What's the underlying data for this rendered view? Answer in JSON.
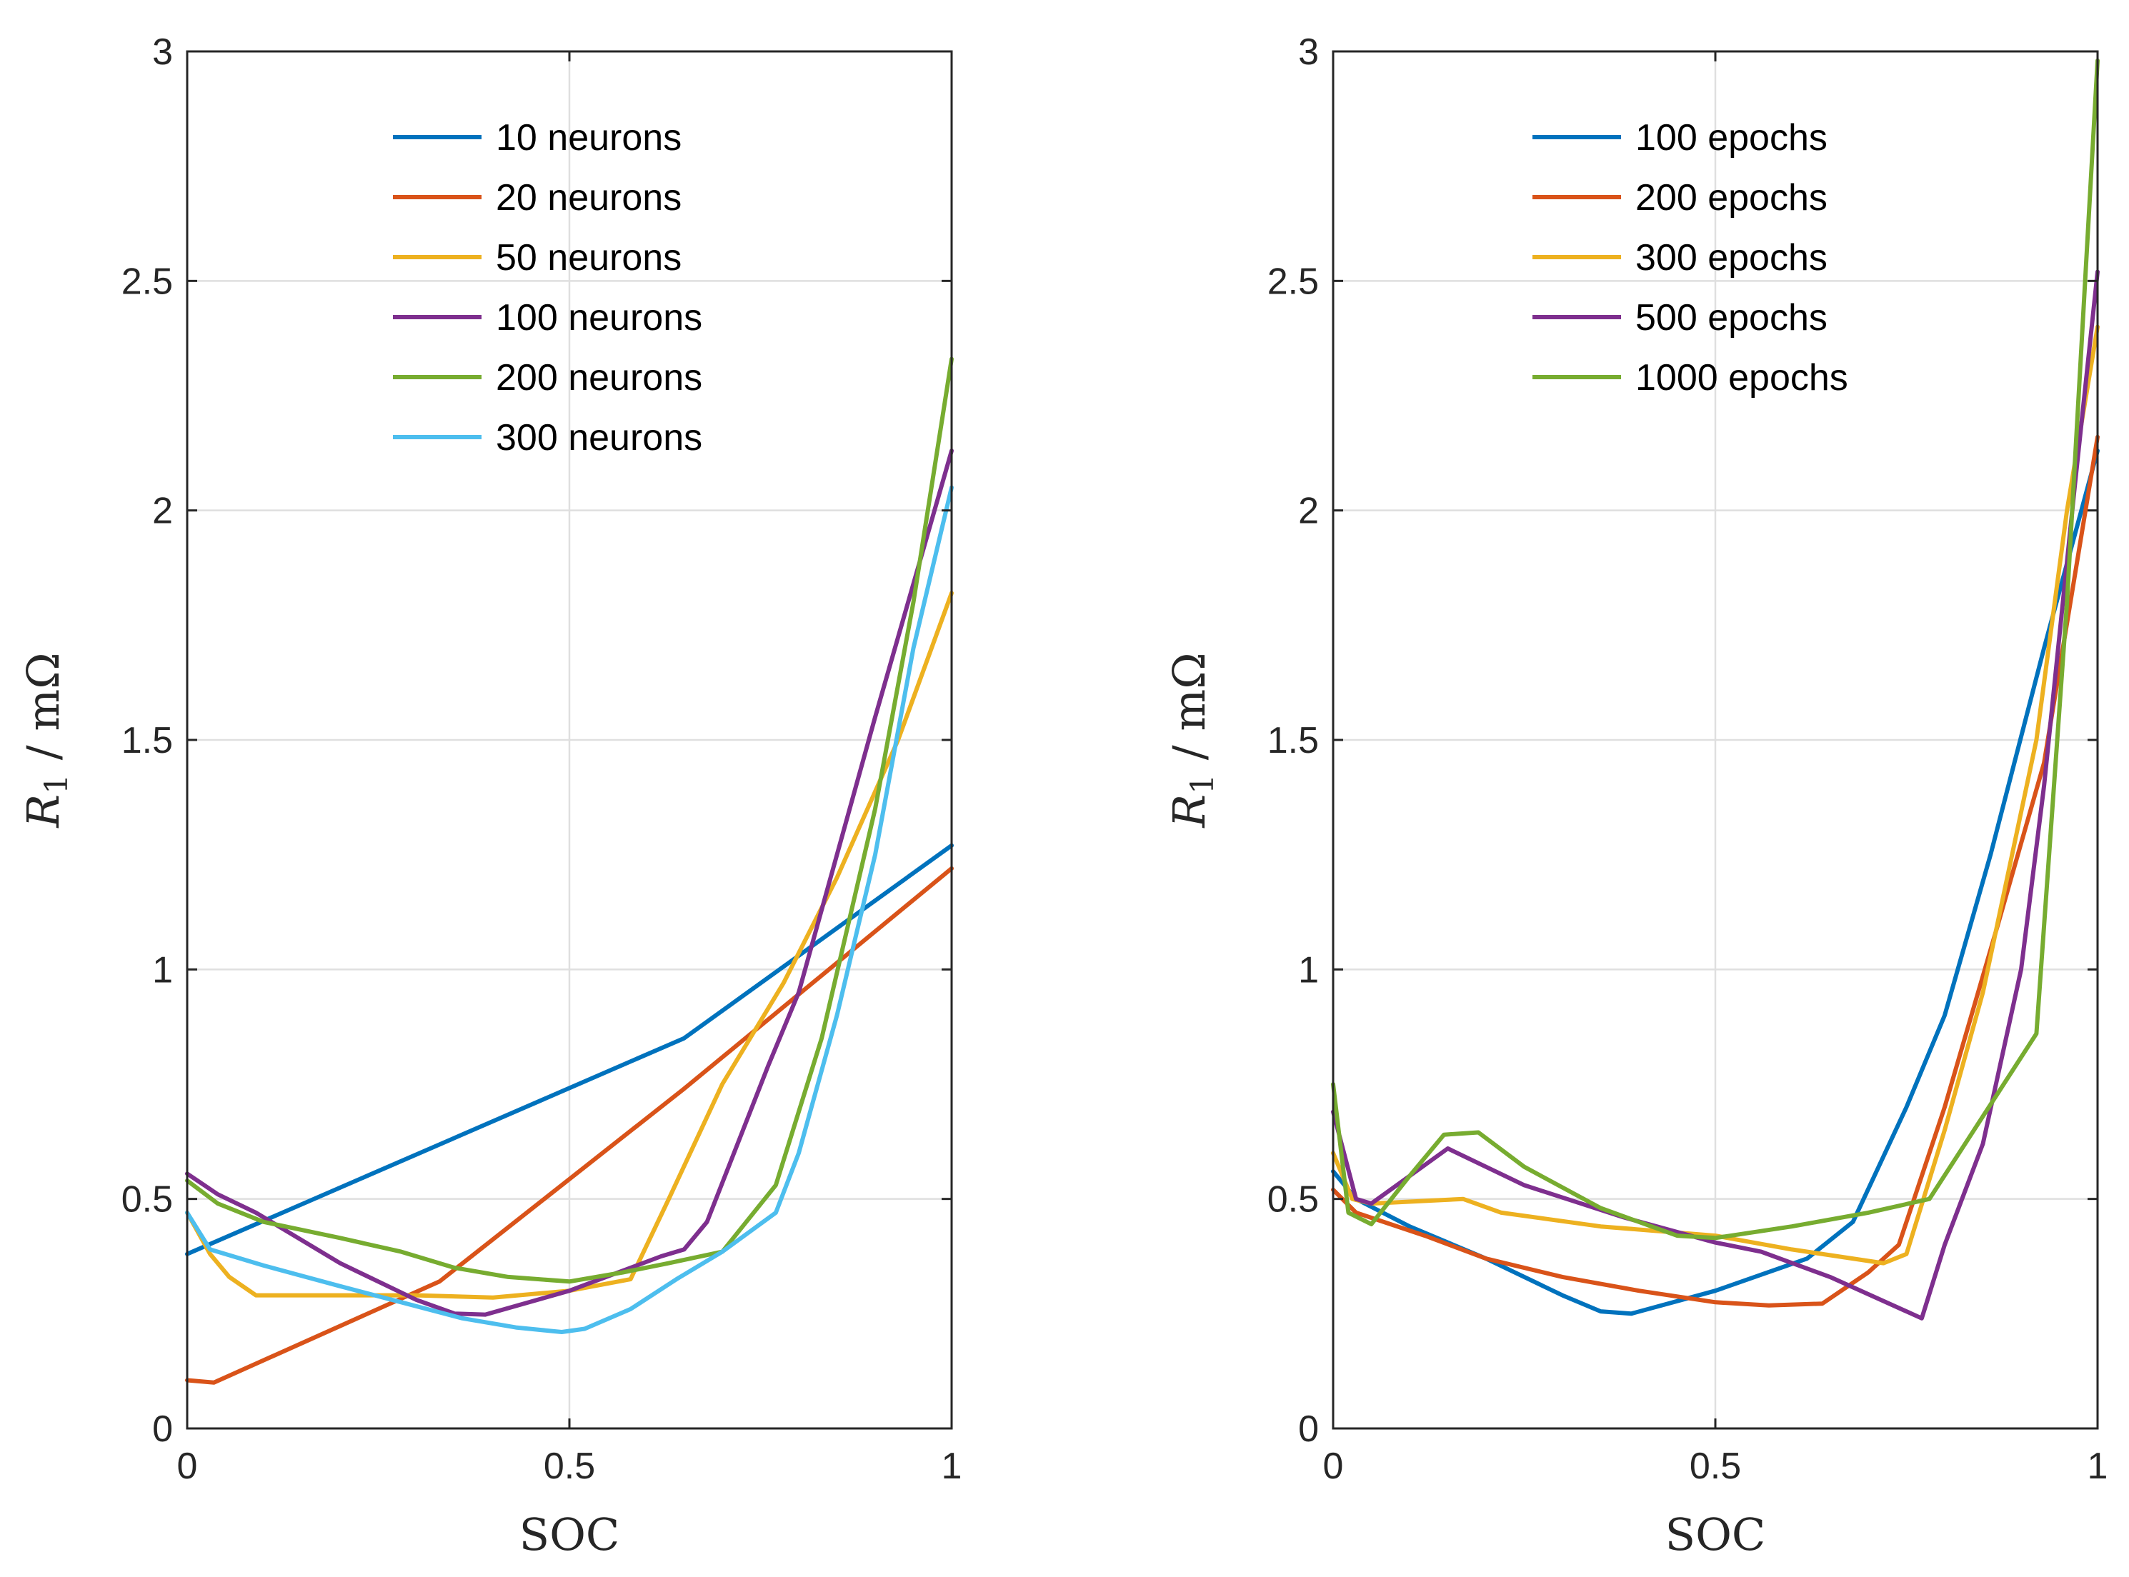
{
  "chart_data": [
    {
      "type": "line",
      "xlabel": "SOC",
      "ylabel": "R1 / mΩ",
      "ylabel_main": "R",
      "ylabel_sub": "1",
      "ylabel_rest": " / mΩ",
      "xlim": [
        0,
        1
      ],
      "ylim": [
        0,
        3
      ],
      "x_ticks": [
        0,
        0.5,
        1
      ],
      "x_tick_labels": [
        "0",
        "0.5",
        "1"
      ],
      "y_ticks": [
        0,
        0.5,
        1,
        1.5,
        2,
        2.5,
        3
      ],
      "y_tick_labels": [
        "0",
        "0.5",
        "1",
        "1.5",
        "2",
        "2.5",
        "3"
      ],
      "grid": true,
      "legend_position": "top-center",
      "series": [
        {
          "name": "10 neurons",
          "color": "#0072BD",
          "points": [
            [
              0,
              0.38
            ],
            [
              0.65,
              0.85
            ],
            [
              1,
              1.27
            ]
          ]
        },
        {
          "name": "20 neurons",
          "color": "#D95319",
          "points": [
            [
              0,
              0.105
            ],
            [
              0.035,
              0.1
            ],
            [
              0.33,
              0.32
            ],
            [
              0.65,
              0.74
            ],
            [
              1,
              1.22
            ]
          ]
        },
        {
          "name": "50 neurons",
          "color": "#EDB120",
          "points": [
            [
              0,
              0.47
            ],
            [
              0.03,
              0.38
            ],
            [
              0.055,
              0.33
            ],
            [
              0.09,
              0.29
            ],
            [
              0.2,
              0.29
            ],
            [
              0.3,
              0.29
            ],
            [
              0.4,
              0.285
            ],
            [
              0.5,
              0.3
            ],
            [
              0.58,
              0.325
            ],
            [
              0.63,
              0.5
            ],
            [
              0.7,
              0.75
            ],
            [
              0.78,
              0.97
            ],
            [
              0.85,
              1.2
            ],
            [
              0.93,
              1.5
            ],
            [
              1,
              1.82
            ]
          ]
        },
        {
          "name": "100 neurons",
          "color": "#7E2F8E",
          "points": [
            [
              0,
              0.555
            ],
            [
              0.04,
              0.51
            ],
            [
              0.09,
              0.47
            ],
            [
              0.14,
              0.42
            ],
            [
              0.2,
              0.36
            ],
            [
              0.3,
              0.28
            ],
            [
              0.35,
              0.25
            ],
            [
              0.39,
              0.248
            ],
            [
              0.5,
              0.3
            ],
            [
              0.62,
              0.375
            ],
            [
              0.65,
              0.39
            ],
            [
              0.68,
              0.45
            ],
            [
              0.76,
              0.79
            ],
            [
              0.8,
              0.95
            ],
            [
              0.9,
              1.55
            ],
            [
              1,
              2.13
            ]
          ]
        },
        {
          "name": "200 neurons",
          "color": "#77AC30",
          "points": [
            [
              0,
              0.54
            ],
            [
              0.04,
              0.49
            ],
            [
              0.1,
              0.45
            ],
            [
              0.2,
              0.415
            ],
            [
              0.28,
              0.385
            ],
            [
              0.35,
              0.35
            ],
            [
              0.42,
              0.33
            ],
            [
              0.5,
              0.32
            ],
            [
              0.57,
              0.34
            ],
            [
              0.63,
              0.36
            ],
            [
              0.7,
              0.385
            ],
            [
              0.77,
              0.53
            ],
            [
              0.83,
              0.85
            ],
            [
              0.9,
              1.35
            ],
            [
              0.95,
              1.8
            ],
            [
              1,
              2.33
            ]
          ]
        },
        {
          "name": "300 neurons",
          "color": "#4DBEEE",
          "points": [
            [
              0,
              0.47
            ],
            [
              0.03,
              0.39
            ],
            [
              0.1,
              0.355
            ],
            [
              0.2,
              0.31
            ],
            [
              0.28,
              0.275
            ],
            [
              0.36,
              0.24
            ],
            [
              0.43,
              0.22
            ],
            [
              0.49,
              0.21
            ],
            [
              0.52,
              0.217
            ],
            [
              0.58,
              0.26
            ],
            [
              0.64,
              0.325
            ],
            [
              0.7,
              0.385
            ],
            [
              0.77,
              0.47
            ],
            [
              0.8,
              0.6
            ],
            [
              0.85,
              0.9
            ],
            [
              0.9,
              1.25
            ],
            [
              0.95,
              1.7
            ],
            [
              1,
              2.05
            ]
          ]
        }
      ]
    },
    {
      "type": "line",
      "xlabel": "SOC",
      "ylabel": "R1 / mΩ",
      "ylabel_main": "R",
      "ylabel_sub": "1",
      "ylabel_rest": " / mΩ",
      "xlim": [
        0,
        1
      ],
      "ylim": [
        0,
        3
      ],
      "x_ticks": [
        0,
        0.5,
        1
      ],
      "x_tick_labels": [
        "0",
        "0.5",
        "1"
      ],
      "y_ticks": [
        0,
        0.5,
        1,
        1.5,
        2,
        2.5,
        3
      ],
      "y_tick_labels": [
        "0",
        "0.5",
        "1",
        "1.5",
        "2",
        "2.5",
        "3"
      ],
      "grid": true,
      "legend_position": "top-center",
      "series": [
        {
          "name": "100 epochs",
          "color": "#0072BD",
          "points": [
            [
              0,
              0.56
            ],
            [
              0.03,
              0.5
            ],
            [
              0.1,
              0.44
            ],
            [
              0.2,
              0.37
            ],
            [
              0.3,
              0.29
            ],
            [
              0.35,
              0.255
            ],
            [
              0.39,
              0.25
            ],
            [
              0.5,
              0.3
            ],
            [
              0.62,
              0.37
            ],
            [
              0.68,
              0.45
            ],
            [
              0.75,
              0.7
            ],
            [
              0.8,
              0.9
            ],
            [
              0.86,
              1.25
            ],
            [
              0.93,
              1.7
            ],
            [
              1,
              2.13
            ]
          ]
        },
        {
          "name": "200 epochs",
          "color": "#D95319",
          "points": [
            [
              0,
              0.52
            ],
            [
              0.03,
              0.47
            ],
            [
              0.12,
              0.42
            ],
            [
              0.2,
              0.37
            ],
            [
              0.3,
              0.33
            ],
            [
              0.4,
              0.3
            ],
            [
              0.5,
              0.275
            ],
            [
              0.57,
              0.268
            ],
            [
              0.64,
              0.272
            ],
            [
              0.7,
              0.34
            ],
            [
              0.74,
              0.4
            ],
            [
              0.8,
              0.7
            ],
            [
              0.87,
              1.1
            ],
            [
              0.93,
              1.45
            ],
            [
              1,
              2.16
            ]
          ]
        },
        {
          "name": "300 epochs",
          "color": "#EDB120",
          "points": [
            [
              0,
              0.6
            ],
            [
              0.025,
              0.5
            ],
            [
              0.05,
              0.49
            ],
            [
              0.17,
              0.5
            ],
            [
              0.22,
              0.47
            ],
            [
              0.35,
              0.44
            ],
            [
              0.5,
              0.42
            ],
            [
              0.6,
              0.39
            ],
            [
              0.72,
              0.36
            ],
            [
              0.75,
              0.38
            ],
            [
              0.8,
              0.65
            ],
            [
              0.85,
              0.95
            ],
            [
              0.92,
              1.5
            ],
            [
              0.96,
              2.0
            ],
            [
              1,
              2.4
            ]
          ]
        },
        {
          "name": "500 epochs",
          "color": "#7E2F8E",
          "points": [
            [
              0,
              0.69
            ],
            [
              0.03,
              0.5
            ],
            [
              0.05,
              0.49
            ],
            [
              0.15,
              0.61
            ],
            [
              0.25,
              0.53
            ],
            [
              0.38,
              0.46
            ],
            [
              0.5,
              0.405
            ],
            [
              0.56,
              0.385
            ],
            [
              0.65,
              0.33
            ],
            [
              0.77,
              0.24
            ],
            [
              0.8,
              0.4
            ],
            [
              0.85,
              0.62
            ],
            [
              0.9,
              1.0
            ],
            [
              0.93,
              1.4
            ],
            [
              0.97,
              2.05
            ],
            [
              1,
              2.52
            ]
          ]
        },
        {
          "name": "1000 epochs",
          "color": "#77AC30",
          "points": [
            [
              0,
              0.75
            ],
            [
              0.02,
              0.47
            ],
            [
              0.05,
              0.445
            ],
            [
              0.1,
              0.55
            ],
            [
              0.145,
              0.64
            ],
            [
              0.19,
              0.645
            ],
            [
              0.25,
              0.57
            ],
            [
              0.35,
              0.48
            ],
            [
              0.45,
              0.42
            ],
            [
              0.5,
              0.415
            ],
            [
              0.6,
              0.44
            ],
            [
              0.7,
              0.47
            ],
            [
              0.78,
              0.5
            ],
            [
              0.85,
              0.68
            ],
            [
              0.92,
              0.86
            ],
            [
              0.96,
              1.8
            ],
            [
              1,
              2.98
            ]
          ]
        }
      ]
    }
  ]
}
